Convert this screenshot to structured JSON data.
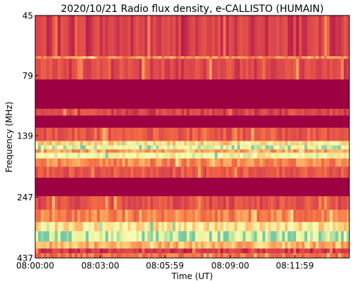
{
  "chart_data": {
    "type": "heatmap",
    "title": "2020/10/21  Radio flux density, e-CALLISTO (HUMAIN)",
    "xlabel": "Time (UT)",
    "ylabel": "Frequency (MHz)",
    "x_range": [
      "08:00:00",
      "08:14:30"
    ],
    "y_range_mhz": [
      45,
      437
    ],
    "y_scale": "log",
    "y_inverted": true,
    "x_ticks": [
      {
        "label": "08:00:00",
        "seconds": 0
      },
      {
        "label": "08:03:00",
        "seconds": 180
      },
      {
        "label": "08:05:59",
        "seconds": 359
      },
      {
        "label": "08:09:00",
        "seconds": 540
      },
      {
        "label": "08:11:59",
        "seconds": 719
      }
    ],
    "y_ticks": [
      {
        "label": "45",
        "mhz": 45
      },
      {
        "label": "79",
        "mhz": 79
      },
      {
        "label": "139",
        "mhz": 139
      },
      {
        "label": "247",
        "mhz": 247
      },
      {
        "label": "437",
        "mhz": 437
      }
    ],
    "colormap": "Spectral_r",
    "colors": {
      "background": "#c8334d",
      "low": "#9e0142",
      "mid": "#f46d43",
      "high_warm": "#fee08b",
      "peak": "#e6f598",
      "cool": "#3288bd"
    },
    "bands": [
      {
        "from_mhz": 45,
        "to_mhz": 66,
        "level": 0.14
      },
      {
        "from_mhz": 66,
        "to_mhz": 67.5,
        "level": 0.38
      },
      {
        "from_mhz": 67.5,
        "to_mhz": 82,
        "level": 0.18
      },
      {
        "from_mhz": 82,
        "to_mhz": 108,
        "level": 0.0
      },
      {
        "from_mhz": 108,
        "to_mhz": 115,
        "level": 0.16
      },
      {
        "from_mhz": 115,
        "to_mhz": 129,
        "level": 0.0
      },
      {
        "from_mhz": 129,
        "to_mhz": 146,
        "level": 0.22
      },
      {
        "from_mhz": 146,
        "to_mhz": 152,
        "level": 0.58
      },
      {
        "from_mhz": 152,
        "to_mhz": 158,
        "level": 0.82
      },
      {
        "from_mhz": 158,
        "to_mhz": 163,
        "level": 0.42
      },
      {
        "from_mhz": 163,
        "to_mhz": 172,
        "level": 0.72
      },
      {
        "from_mhz": 172,
        "to_mhz": 186,
        "level": 0.36
      },
      {
        "from_mhz": 186,
        "to_mhz": 206,
        "level": 0.22
      },
      {
        "from_mhz": 206,
        "to_mhz": 245,
        "level": 0.0
      },
      {
        "from_mhz": 245,
        "to_mhz": 278,
        "level": 0.2
      },
      {
        "from_mhz": 278,
        "to_mhz": 312,
        "level": 0.34
      },
      {
        "from_mhz": 312,
        "to_mhz": 340,
        "level": 0.62
      },
      {
        "from_mhz": 340,
        "to_mhz": 375,
        "level": 0.86
      },
      {
        "from_mhz": 375,
        "to_mhz": 400,
        "level": 0.48
      },
      {
        "from_mhz": 400,
        "to_mhz": 418,
        "level": 0.12
      },
      {
        "from_mhz": 418,
        "to_mhz": 437,
        "level": 0.3
      }
    ],
    "grid": false,
    "legend": "none"
  }
}
